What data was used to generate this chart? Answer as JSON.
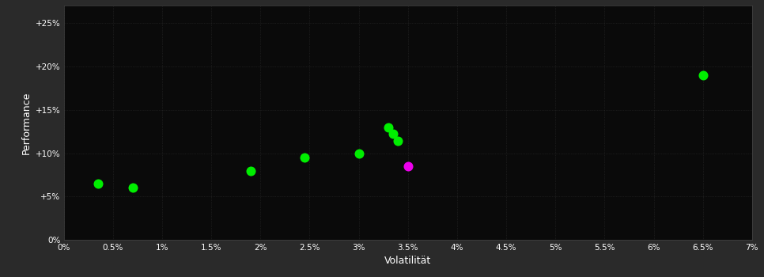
{
  "background_color": "#2a2a2a",
  "plot_bg_color": "#0a0a0a",
  "text_color": "#ffffff",
  "xlabel": "Volatilität",
  "ylabel": "Performance",
  "xlim": [
    0,
    0.07
  ],
  "ylim": [
    0,
    0.27
  ],
  "xtick_vals": [
    0.0,
    0.005,
    0.01,
    0.015,
    0.02,
    0.025,
    0.03,
    0.035,
    0.04,
    0.045,
    0.05,
    0.055,
    0.06,
    0.065,
    0.07
  ],
  "xtick_labels": [
    "0%",
    "0.5%",
    "1%",
    "1.5%",
    "2%",
    "2.5%",
    "3%",
    "3.5%",
    "4%",
    "4.5%",
    "5%",
    "5.5%",
    "6%",
    "6.5%",
    "7%"
  ],
  "ytick_vals": [
    0.0,
    0.05,
    0.1,
    0.15,
    0.2,
    0.25
  ],
  "ytick_labels": [
    "0%",
    "+5%",
    "+10%",
    "+15%",
    "+20%",
    "+25%"
  ],
  "green_points": [
    [
      0.0035,
      0.065
    ],
    [
      0.007,
      0.06
    ],
    [
      0.019,
      0.08
    ],
    [
      0.0245,
      0.095
    ],
    [
      0.03,
      0.1
    ],
    [
      0.033,
      0.13
    ],
    [
      0.0335,
      0.122
    ],
    [
      0.034,
      0.114
    ],
    [
      0.065,
      0.19
    ]
  ],
  "magenta_points": [
    [
      0.035,
      0.085
    ]
  ],
  "green_color": "#00ee00",
  "magenta_color": "#ee00ee",
  "marker_size": 5,
  "grid_color": "#333333",
  "grid_alpha": 0.8
}
